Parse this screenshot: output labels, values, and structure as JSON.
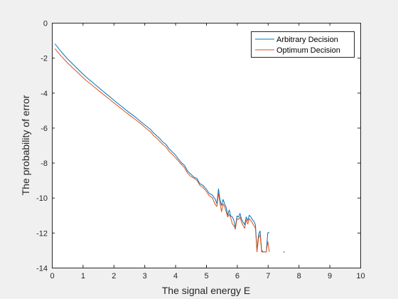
{
  "chart_data": {
    "type": "line",
    "title": "",
    "xlabel": "The signal energy E",
    "ylabel": "The probability of error",
    "xlim": [
      0,
      10
    ],
    "ylim": [
      -14,
      0
    ],
    "xticks": [
      0,
      1,
      2,
      3,
      4,
      5,
      6,
      7,
      8,
      9,
      10
    ],
    "yticks": [
      0,
      -2,
      -4,
      -6,
      -8,
      -10,
      -12,
      -14
    ],
    "grid": false,
    "legend_position": "top-right",
    "colors": {
      "Arbitrary Decision": "#0072bd",
      "Optimum Decision": "#d95319",
      "axes_background": "#ffffff",
      "figure_background": "#f0f0f0"
    },
    "series": [
      {
        "name": "Arbitrary Decision",
        "segments": [
          [
            [
              0.1,
              -1.2
            ],
            [
              0.3,
              -1.65
            ],
            [
              0.5,
              -2.05
            ],
            [
              0.7,
              -2.4
            ],
            [
              0.9,
              -2.75
            ],
            [
              1.1,
              -3.08
            ],
            [
              1.3,
              -3.38
            ],
            [
              1.5,
              -3.68
            ],
            [
              1.7,
              -3.98
            ],
            [
              1.9,
              -4.26
            ],
            [
              2.1,
              -4.56
            ],
            [
              2.3,
              -4.84
            ],
            [
              2.5,
              -5.12
            ],
            [
              2.7,
              -5.38
            ],
            [
              2.9,
              -5.68
            ],
            [
              3.0,
              -5.82
            ],
            [
              3.1,
              -5.96
            ],
            [
              3.2,
              -6.1
            ],
            [
              3.3,
              -6.3
            ],
            [
              3.4,
              -6.46
            ],
            [
              3.5,
              -6.62
            ],
            [
              3.6,
              -6.82
            ],
            [
              3.7,
              -6.95
            ],
            [
              3.8,
              -7.2
            ],
            [
              3.9,
              -7.38
            ],
            [
              4.0,
              -7.55
            ],
            [
              4.1,
              -7.78
            ],
            [
              4.2,
              -8.0
            ],
            [
              4.3,
              -8.15
            ],
            [
              4.4,
              -8.48
            ],
            [
              4.5,
              -8.65
            ],
            [
              4.6,
              -8.82
            ],
            [
              4.7,
              -8.9
            ],
            [
              4.8,
              -9.2
            ],
            [
              4.9,
              -9.3
            ],
            [
              5.0,
              -9.5
            ],
            [
              5.1,
              -9.75
            ],
            [
              5.2,
              -9.85
            ],
            [
              5.3,
              -10.1
            ],
            [
              5.35,
              -10.35
            ],
            [
              5.4,
              -9.5
            ],
            [
              5.45,
              -10.1
            ],
            [
              5.5,
              -10.45
            ],
            [
              5.55,
              -10.1
            ],
            [
              5.6,
              -10.35
            ],
            [
              5.65,
              -10.55
            ],
            [
              5.7,
              -11.0
            ],
            [
              5.75,
              -10.7
            ],
            [
              5.8,
              -11.05
            ],
            [
              5.85,
              -11.1
            ],
            [
              5.9,
              -11.3
            ],
            [
              5.95,
              -11.7
            ],
            [
              6.0,
              -11.05
            ],
            [
              6.05,
              -11.1
            ],
            [
              6.1,
              -10.9
            ],
            [
              6.15,
              -11.25
            ],
            [
              6.2,
              -11.4
            ],
            [
              6.25,
              -11.55
            ],
            [
              6.3,
              -11.1
            ],
            [
              6.35,
              -11.3
            ],
            [
              6.4,
              -11.0
            ],
            [
              6.45,
              -11.1
            ],
            [
              6.5,
              -11.25
            ],
            [
              6.55,
              -11.35
            ],
            [
              6.6,
              -11.55
            ],
            [
              6.65,
              -13.0
            ],
            [
              6.7,
              -12.1
            ],
            [
              6.75,
              -11.9
            ],
            [
              6.8,
              -13.0
            ],
            [
              6.85,
              -13.1
            ],
            [
              6.9,
              -13.1
            ],
            [
              6.95,
              -13.1
            ],
            [
              7.0,
              -12.0
            ],
            [
              7.05,
              -12.0
            ]
          ],
          [
            [
              7.5,
              -13.1
            ],
            [
              7.55,
              -13.1
            ]
          ]
        ]
      },
      {
        "name": "Optimum Decision",
        "segments": [
          [
            [
              0.1,
              -1.48
            ],
            [
              0.3,
              -1.9
            ],
            [
              0.5,
              -2.28
            ],
            [
              0.7,
              -2.62
            ],
            [
              0.9,
              -2.95
            ],
            [
              1.1,
              -3.28
            ],
            [
              1.3,
              -3.56
            ],
            [
              1.5,
              -3.86
            ],
            [
              1.7,
              -4.14
            ],
            [
              1.9,
              -4.42
            ],
            [
              2.1,
              -4.7
            ],
            [
              2.3,
              -4.98
            ],
            [
              2.5,
              -5.26
            ],
            [
              2.7,
              -5.52
            ],
            [
              2.9,
              -5.8
            ],
            [
              3.0,
              -5.95
            ],
            [
              3.1,
              -6.1
            ],
            [
              3.2,
              -6.24
            ],
            [
              3.3,
              -6.45
            ],
            [
              3.4,
              -6.6
            ],
            [
              3.5,
              -6.78
            ],
            [
              3.6,
              -6.96
            ],
            [
              3.7,
              -7.1
            ],
            [
              3.8,
              -7.35
            ],
            [
              3.9,
              -7.52
            ],
            [
              4.0,
              -7.7
            ],
            [
              4.1,
              -7.9
            ],
            [
              4.2,
              -8.1
            ],
            [
              4.3,
              -8.28
            ],
            [
              4.4,
              -8.6
            ],
            [
              4.5,
              -8.78
            ],
            [
              4.6,
              -8.88
            ],
            [
              4.7,
              -9.0
            ],
            [
              4.8,
              -9.3
            ],
            [
              4.9,
              -9.42
            ],
            [
              5.0,
              -9.62
            ],
            [
              5.1,
              -9.88
            ],
            [
              5.2,
              -10.0
            ],
            [
              5.3,
              -10.4
            ],
            [
              5.35,
              -10.5
            ],
            [
              5.4,
              -9.75
            ],
            [
              5.45,
              -10.3
            ],
            [
              5.5,
              -10.8
            ],
            [
              5.55,
              -10.35
            ],
            [
              5.6,
              -10.5
            ],
            [
              5.65,
              -10.8
            ],
            [
              5.7,
              -11.1
            ],
            [
              5.75,
              -10.95
            ],
            [
              5.8,
              -11.15
            ],
            [
              5.85,
              -11.5
            ],
            [
              5.9,
              -11.6
            ],
            [
              5.95,
              -11.8
            ],
            [
              6.0,
              -11.2
            ],
            [
              6.05,
              -11.25
            ],
            [
              6.1,
              -11.1
            ],
            [
              6.15,
              -11.4
            ],
            [
              6.2,
              -11.6
            ],
            [
              6.25,
              -11.75
            ],
            [
              6.3,
              -11.25
            ],
            [
              6.35,
              -11.5
            ],
            [
              6.4,
              -11.2
            ],
            [
              6.45,
              -11.3
            ],
            [
              6.5,
              -11.45
            ],
            [
              6.55,
              -11.6
            ],
            [
              6.6,
              -11.75
            ],
            [
              6.65,
              -13.1
            ],
            [
              6.7,
              -12.3
            ],
            [
              6.75,
              -12.1
            ],
            [
              6.8,
              -13.1
            ],
            [
              6.85,
              -13.1
            ],
            [
              6.9,
              -13.1
            ],
            [
              6.95,
              -13.1
            ],
            [
              7.0,
              -12.5
            ],
            [
              7.05,
              -13.1
            ]
          ],
          [
            [
              7.5,
              -13.1
            ],
            [
              7.55,
              -13.1
            ]
          ]
        ]
      }
    ]
  }
}
